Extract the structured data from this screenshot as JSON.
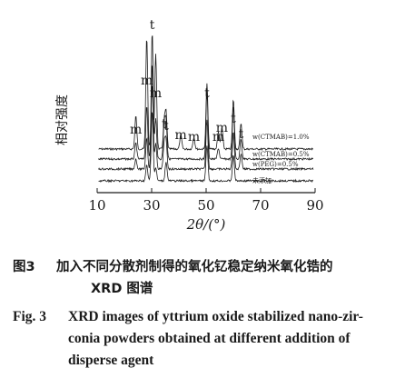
{
  "chart_data": {
    "type": "line",
    "xlabel": "2θ/(°)",
    "ylabel": "相对强度",
    "x_ticks": [
      10,
      30,
      50,
      70,
      90
    ],
    "xlim": [
      10,
      90
    ],
    "grid": false,
    "peak_markers": [
      {
        "x": 24.2,
        "label": "m"
      },
      {
        "x": 28.2,
        "label": "m"
      },
      {
        "x": 30.2,
        "label": "t"
      },
      {
        "x": 31.5,
        "label": "m"
      },
      {
        "x": 34.6,
        "label": "t"
      },
      {
        "x": 35.3,
        "label": "t"
      },
      {
        "x": 40.7,
        "label": "m"
      },
      {
        "x": 45.5,
        "label": "m"
      },
      {
        "x": 50.3,
        "label": "t"
      },
      {
        "x": 54.5,
        "label": "m"
      },
      {
        "x": 55.8,
        "label": "m"
      },
      {
        "x": 60.0,
        "label": "t"
      },
      {
        "x": 62.8,
        "label": "t"
      }
    ],
    "series": [
      {
        "name": "w(CTMAB)=1.0%",
        "peaks": [
          [
            24.2,
            0.28
          ],
          [
            28.2,
            0.95
          ],
          [
            30.2,
            0.55
          ],
          [
            31.5,
            0.8
          ],
          [
            34.6,
            0.22
          ],
          [
            35.3,
            0.3
          ],
          [
            40.7,
            0.12
          ],
          [
            45.5,
            0.1
          ],
          [
            50.3,
            0.55
          ],
          [
            54.5,
            0.15
          ],
          [
            55.8,
            0.18
          ],
          [
            60.0,
            0.42
          ],
          [
            62.8,
            0.22
          ]
        ]
      },
      {
        "name": "w(CTMAB)=0.5%",
        "peaks": [
          [
            24.2,
            0.12
          ],
          [
            28.2,
            0.4
          ],
          [
            30.2,
            0.95
          ],
          [
            31.5,
            0.3
          ],
          [
            34.6,
            0.25
          ],
          [
            35.3,
            0.28
          ],
          [
            50.3,
            0.5
          ],
          [
            54.5,
            0.08
          ],
          [
            60.0,
            0.4
          ],
          [
            62.8,
            0.15
          ]
        ]
      },
      {
        "name": "w(PEG)=0.5%",
        "peaks": [
          [
            24.2,
            0.08
          ],
          [
            28.2,
            0.25
          ],
          [
            30.2,
            0.85
          ],
          [
            31.5,
            0.2
          ],
          [
            34.6,
            0.2
          ],
          [
            35.3,
            0.22
          ],
          [
            50.3,
            0.4
          ],
          [
            60.0,
            0.3
          ],
          [
            62.8,
            0.12
          ]
        ]
      },
      {
        "name": "未添加",
        "peaks": [
          [
            28.2,
            0.12
          ],
          [
            30.2,
            0.55
          ],
          [
            31.5,
            0.1
          ],
          [
            35.3,
            0.15
          ],
          [
            50.3,
            0.28
          ],
          [
            60.0,
            0.2
          ]
        ]
      }
    ]
  },
  "caption": {
    "cn_number": "图3",
    "cn_line1": "加入不同分散剂制得的氧化钇稳定纳米氧化锆的",
    "cn_line2": "XRD 图谱",
    "en_number": "Fig. 3",
    "en_line1": "XRD images of yttrium oxide stabilized nano-zir-",
    "en_line2": "conia powders obtained at different addition of",
    "en_line3": "disperse agent"
  }
}
